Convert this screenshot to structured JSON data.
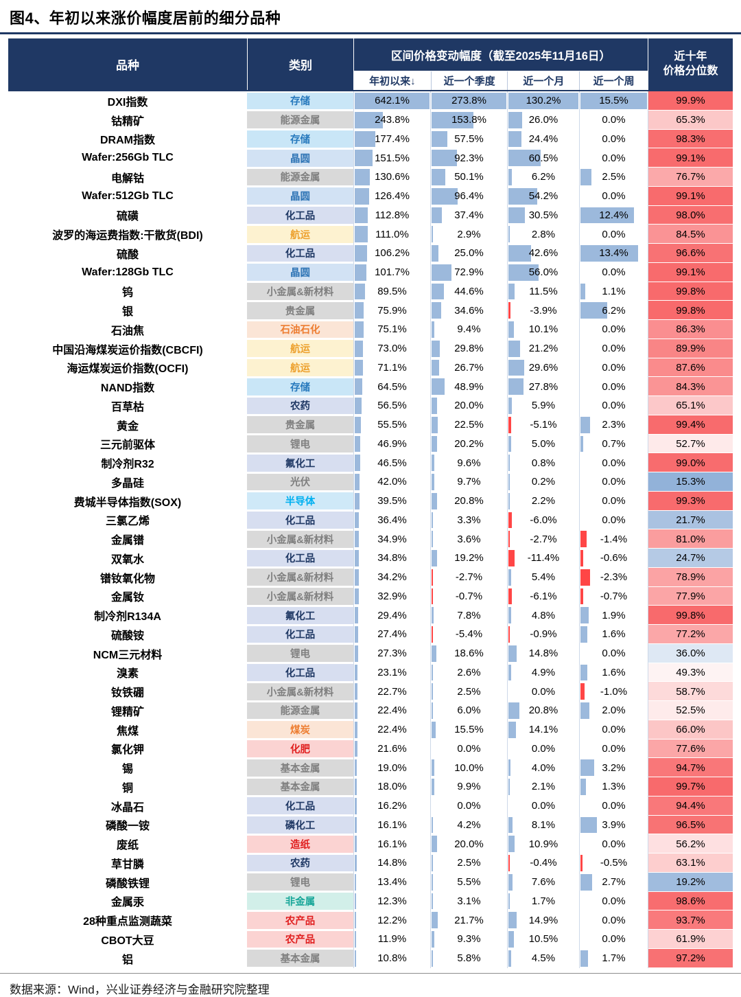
{
  "title": "图4、年初以来涨价幅度居前的细分品种",
  "source_note": "数据来源：Wind，兴业证券经济与金融研究院整理",
  "header": {
    "product": "品种",
    "category": "类别",
    "range_title": "区间价格变动幅度（截至2025年11月16日）",
    "percentile_line1": "近十年",
    "percentile_line2": "价格分位数",
    "sub_columns": [
      "年初以来↓",
      "近一个季度",
      "近一个月",
      "近一个周"
    ]
  },
  "colors": {
    "header_bg": "#1f3864",
    "bar_positive": "#9cb9dc",
    "bar_negative": "#ff4646",
    "scale_max_red": "#f8696b",
    "scale_mid_white": "#ffffff",
    "scale_min_blue": "#5a8ac6"
  },
  "category_styles": {
    "存储": {
      "bg": "#c9e6f7",
      "color": "#2779bd"
    },
    "晶圆": {
      "bg": "#d2e2f4",
      "color": "#2e74b5"
    },
    "能源金属": {
      "bg": "#d9d9d9",
      "color": "#7f7f7f"
    },
    "小金属&新材料": {
      "bg": "#d9d9d9",
      "color": "#7f7f7f"
    },
    "贵金属": {
      "bg": "#d9d9d9",
      "color": "#7f7f7f"
    },
    "锂电": {
      "bg": "#d9d9d9",
      "color": "#7f7f7f"
    },
    "光伏": {
      "bg": "#d9d9d9",
      "color": "#7f7f7f"
    },
    "基本金属": {
      "bg": "#d9d9d9",
      "color": "#7f7f7f"
    },
    "化工品": {
      "bg": "#d7def0",
      "color": "#1f3864"
    },
    "农药": {
      "bg": "#d7def0",
      "color": "#1f3864"
    },
    "氟化工": {
      "bg": "#d7def0",
      "color": "#1f3864"
    },
    "磷化工": {
      "bg": "#d7def0",
      "color": "#1f3864"
    },
    "航运": {
      "bg": "#fdf2d0",
      "color": "#eda12f"
    },
    "石油石化": {
      "bg": "#fbe5d6",
      "color": "#ed7d31"
    },
    "煤炭": {
      "bg": "#fbe5d6",
      "color": "#ed7d31"
    },
    "半导体": {
      "bg": "#cfe9f8",
      "color": "#00b0f0"
    },
    "化肥": {
      "bg": "#fbd3d2",
      "color": "#e01f1f"
    },
    "造纸": {
      "bg": "#fbd3d2",
      "color": "#e01f1f"
    },
    "农产品": {
      "bg": "#fbd3d2",
      "color": "#e01f1f"
    },
    "非金属": {
      "bg": "#d2efe9",
      "color": "#17a698"
    }
  },
  "chart_data": {
    "type": "table",
    "title": "图4、年初以来涨价幅度居前的细分品种",
    "as_of": "2025年11月16日",
    "unit": "%",
    "sorted_by": "年初以来 ↓",
    "columns": [
      "品种",
      "类别",
      "年初以来",
      "近一个季度",
      "近一个月",
      "近一个周",
      "近十年价格分位数"
    ],
    "rows": [
      [
        "DXI指数",
        "存储",
        642.1,
        273.8,
        130.2,
        15.5,
        99.9
      ],
      [
        "钴精矿",
        "能源金属",
        243.8,
        153.8,
        26.0,
        0.0,
        65.3
      ],
      [
        "DRAM指数",
        "存储",
        177.4,
        57.5,
        24.4,
        0.0,
        98.3
      ],
      [
        "Wafer:256Gb TLC",
        "晶圆",
        151.5,
        92.3,
        60.5,
        0.0,
        99.1
      ],
      [
        "电解钴",
        "能源金属",
        130.6,
        50.1,
        6.2,
        2.5,
        76.7
      ],
      [
        "Wafer:512Gb TLC",
        "晶圆",
        126.4,
        96.4,
        54.2,
        0.0,
        99.1
      ],
      [
        "硫磺",
        "化工品",
        112.8,
        37.4,
        30.5,
        12.4,
        98.0
      ],
      [
        "波罗的海运费指数:干散货(BDI)",
        "航运",
        111.0,
        2.9,
        2.8,
        0.0,
        84.5
      ],
      [
        "硫酸",
        "化工品",
        106.2,
        25.0,
        42.6,
        13.4,
        96.6
      ],
      [
        "Wafer:128Gb TLC",
        "晶圆",
        101.7,
        72.9,
        56.0,
        0.0,
        99.1
      ],
      [
        "钨",
        "小金属&新材料",
        89.5,
        44.6,
        11.5,
        1.1,
        99.8
      ],
      [
        "银",
        "贵金属",
        75.9,
        34.6,
        -3.9,
        6.2,
        99.8
      ],
      [
        "石油焦",
        "石油石化",
        75.1,
        9.4,
        10.1,
        0.0,
        86.3
      ],
      [
        "中国沿海煤炭运价指数(CBCFI)",
        "航运",
        73.0,
        29.8,
        21.2,
        0.0,
        89.9
      ],
      [
        "海运煤炭运价指数(OCFI)",
        "航运",
        71.1,
        26.7,
        29.6,
        0.0,
        87.6
      ],
      [
        "NAND指数",
        "存储",
        64.5,
        48.9,
        27.8,
        0.0,
        84.3
      ],
      [
        "百草枯",
        "农药",
        56.5,
        20.0,
        5.9,
        0.0,
        65.1
      ],
      [
        "黄金",
        "贵金属",
        55.5,
        22.5,
        -5.1,
        2.3,
        99.4
      ],
      [
        "三元前驱体",
        "锂电",
        46.9,
        20.2,
        5.0,
        0.7,
        52.7
      ],
      [
        "制冷剂R32",
        "氟化工",
        46.5,
        9.6,
        0.8,
        0.0,
        99.0
      ],
      [
        "多晶硅",
        "光伏",
        42.0,
        9.7,
        0.2,
        0.0,
        15.3
      ],
      [
        "费城半导体指数(SOX)",
        "半导体",
        39.5,
        20.8,
        2.2,
        0.0,
        99.3
      ],
      [
        "三氯乙烯",
        "化工品",
        36.4,
        3.3,
        -6.0,
        0.0,
        21.7
      ],
      [
        "金属镨",
        "小金属&新材料",
        34.9,
        3.6,
        -2.7,
        -1.4,
        81.0
      ],
      [
        "双氧水",
        "化工品",
        34.8,
        19.2,
        -11.4,
        -0.6,
        24.7
      ],
      [
        "镨钕氧化物",
        "小金属&新材料",
        34.2,
        -2.7,
        5.4,
        -2.3,
        78.9
      ],
      [
        "金属钕",
        "小金属&新材料",
        32.9,
        -0.7,
        -6.1,
        -0.7,
        77.9
      ],
      [
        "制冷剂R134A",
        "氟化工",
        29.4,
        7.8,
        4.8,
        1.9,
        99.8
      ],
      [
        "硫酸铵",
        "化工品",
        27.4,
        -5.4,
        -0.9,
        1.6,
        77.2
      ],
      [
        "NCM三元材料",
        "锂电",
        27.3,
        18.6,
        14.8,
        0.0,
        36.0
      ],
      [
        "溴素",
        "化工品",
        23.1,
        2.6,
        4.9,
        1.6,
        49.3
      ],
      [
        "钕铁硼",
        "小金属&新材料",
        22.7,
        2.5,
        0.0,
        -1.0,
        58.7
      ],
      [
        "锂精矿",
        "能源金属",
        22.4,
        6.0,
        20.8,
        2.0,
        52.5
      ],
      [
        "焦煤",
        "煤炭",
        22.4,
        15.5,
        14.1,
        0.0,
        66.0
      ],
      [
        "氯化钾",
        "化肥",
        21.6,
        0.0,
        0.0,
        0.0,
        77.6
      ],
      [
        "锡",
        "基本金属",
        19.0,
        10.0,
        4.0,
        3.2,
        94.7
      ],
      [
        "铜",
        "基本金属",
        18.0,
        9.9,
        2.1,
        1.3,
        99.7
      ],
      [
        "冰晶石",
        "化工品",
        16.2,
        0.0,
        0.0,
        0.0,
        94.4
      ],
      [
        "磷酸一铵",
        "磷化工",
        16.1,
        4.2,
        8.1,
        3.9,
        96.5
      ],
      [
        "废纸",
        "造纸",
        16.1,
        20.0,
        10.9,
        0.0,
        56.2
      ],
      [
        "草甘膦",
        "农药",
        14.8,
        2.5,
        -0.4,
        -0.5,
        63.1
      ],
      [
        "磷酸铁锂",
        "锂电",
        13.4,
        5.5,
        7.6,
        2.7,
        19.2
      ],
      [
        "金属汞",
        "非金属",
        12.3,
        3.1,
        1.7,
        0.0,
        98.6
      ],
      [
        "28种重点监测蔬菜",
        "农产品",
        12.2,
        21.7,
        14.9,
        0.0,
        93.7
      ],
      [
        "CBOT大豆",
        "农产品",
        11.9,
        9.3,
        10.5,
        0.0,
        61.9
      ],
      [
        "铝",
        "基本金属",
        10.8,
        5.8,
        4.5,
        1.7,
        97.2
      ]
    ]
  }
}
